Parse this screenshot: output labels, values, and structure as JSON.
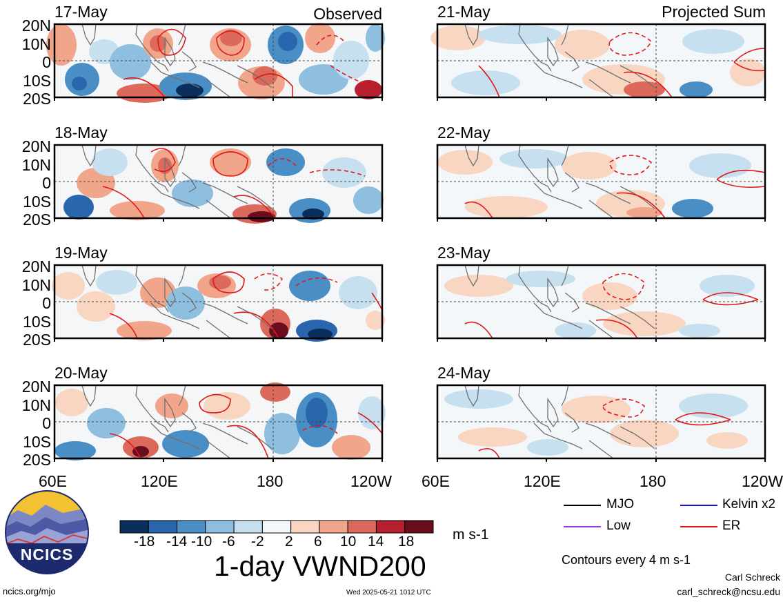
{
  "title": "1-day VWND200",
  "units": "m s-1",
  "contour_note": "Contours every 4 m s-1",
  "footer": {
    "left": "ncics.org/mjo",
    "center": "Wed 2025-05-21 1012 UTC",
    "author": "Carl Schreck",
    "email": "carl_schreck@ncsu.edu"
  },
  "logo_text": "NCICS",
  "columns": {
    "left_label": "Observed",
    "right_label": "Projected Sum"
  },
  "panels": {
    "left": [
      {
        "date": "17-May"
      },
      {
        "date": "18-May"
      },
      {
        "date": "19-May"
      },
      {
        "date": "20-May"
      }
    ],
    "right": [
      {
        "date": "21-May"
      },
      {
        "date": "22-May"
      },
      {
        "date": "23-May"
      },
      {
        "date": "24-May"
      }
    ]
  },
  "lat_labels": [
    "20N",
    "10N",
    "0",
    "10S",
    "20S"
  ],
  "lon_labels": [
    "60E",
    "120E",
    "180",
    "120W"
  ],
  "colorbar": {
    "ticks": [
      "-18",
      "-14",
      "-10",
      "-6",
      "-2",
      "2",
      "6",
      "10",
      "14",
      "18"
    ],
    "colors": [
      "#0b2f5c",
      "#2a66ae",
      "#4a8ec6",
      "#8fbfdf",
      "#c6e0ef",
      "#f4f7f9",
      "#f9d6c2",
      "#f1a68c",
      "#dc6a5c",
      "#b6202e",
      "#6a0c1d"
    ]
  },
  "legend": [
    {
      "label": "MJO",
      "color": "#000000"
    },
    {
      "label": "Kelvin x2",
      "color": "#1515d8"
    },
    {
      "label": "Low",
      "color": "#9a3fdf"
    },
    {
      "label": "ER",
      "color": "#e01818"
    }
  ],
  "accent_colors": {
    "contour_red": "#e01818",
    "coast": "#707070"
  }
}
